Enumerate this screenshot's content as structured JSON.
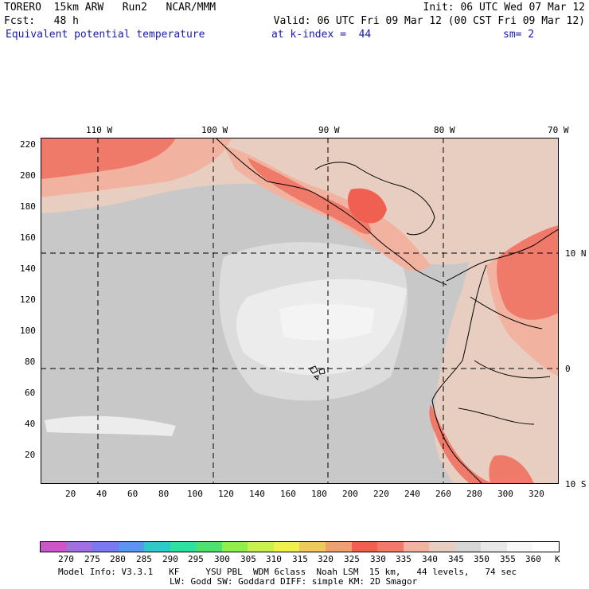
{
  "header": {
    "line1_left": "TORERO  15km ARW   Run2   NCAR/MMM",
    "line1_right": "Init: 06 UTC Wed 07 Mar 12",
    "line2_left": "Fcst:   48 h",
    "line2_right": "Valid: 06 UTC Fri 09 Mar 12 (00 CST Fri 09 Mar 12)",
    "field": "Equivalent potential temperature",
    "level": "at k-index =  44",
    "smooth": "sm= 2"
  },
  "map": {
    "lon_labels": [
      "110 W",
      "100 W",
      "90 W",
      "80 W",
      "70 W"
    ],
    "lat_labels": [
      "10 N",
      "0",
      "10 S"
    ],
    "y_ticks": [
      "220",
      "200",
      "180",
      "160",
      "140",
      "120",
      "100",
      "80",
      "60",
      "40",
      "20"
    ],
    "x_ticks": [
      "20",
      "40",
      "60",
      "80",
      "100",
      "120",
      "140",
      "160",
      "180",
      "200",
      "220",
      "240",
      "260",
      "280",
      "300",
      "320"
    ],
    "background_color": "#c8c8c8"
  },
  "colorbar": {
    "labels": [
      "270",
      "275",
      "280",
      "285",
      "290",
      "295",
      "300",
      "305",
      "310",
      "315",
      "320",
      "325",
      "330",
      "335",
      "340",
      "345",
      "350",
      "355",
      "360"
    ],
    "unit": "K",
    "colors": [
      "#cc55cc",
      "#a070e0",
      "#7a7aee",
      "#5a96f0",
      "#30c8c8",
      "#30e0a0",
      "#50e070",
      "#90ee50",
      "#c8f050",
      "#f0f050",
      "#f0c860",
      "#f0a070",
      "#f06050",
      "#f07a6a",
      "#f2b2a0",
      "#e8cec0",
      "#d6d6d6",
      "#e8e8e8",
      "#f8f8f8",
      "#ffffff"
    ]
  },
  "footer": {
    "line1": "Model Info: V3.3.1   KF     YSU PBL  WDM 6class  Noah LSM  15 km,   44 levels,   74 sec",
    "line2": "LW: Godd SW: Goddard DIFF: simple KM: 2D Smagor"
  }
}
